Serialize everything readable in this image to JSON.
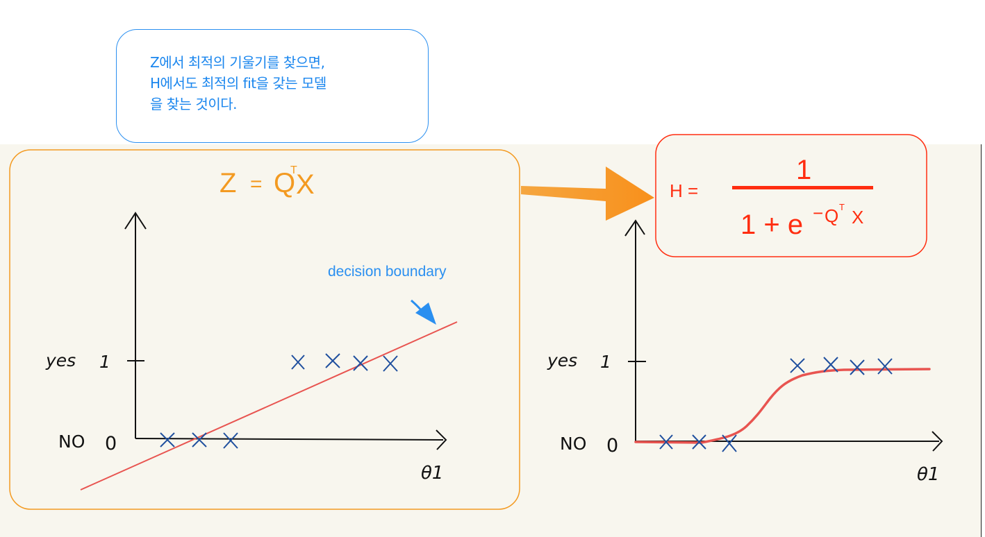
{
  "callout": {
    "lines": [
      "Z에서 최적의 기울기를 찾으면,",
      "H에서도 최적의 fit을 갖는 모델",
      "을 찾는 것이다."
    ]
  },
  "left_panel": {
    "z_lhs": "Z",
    "z_eq": "=",
    "z_q": "Q",
    "z_sup": "T",
    "z_x": "X",
    "decision_label": "decision boundary",
    "y_label_yes": "yes",
    "y_tick_1": "1",
    "y_label_no": "NO",
    "y_tick_0": "0",
    "x_label": "θ1"
  },
  "right_panel": {
    "h_lhs": "H =",
    "h_num": "1",
    "h_den_base": "1 + e",
    "h_den_minus": "−",
    "h_den_q": "Q",
    "h_den_sup": "T",
    "h_den_x": "X",
    "y_label_yes": "yes",
    "y_tick_1": "1",
    "y_label_no": "NO",
    "y_tick_0": "0",
    "x_label": "θ1"
  },
  "colors": {
    "callout": "#2a8ff0",
    "orange": "#f39a21",
    "red": "#ff2d10",
    "line": "#e85450",
    "cross": "#1f4f9e"
  }
}
